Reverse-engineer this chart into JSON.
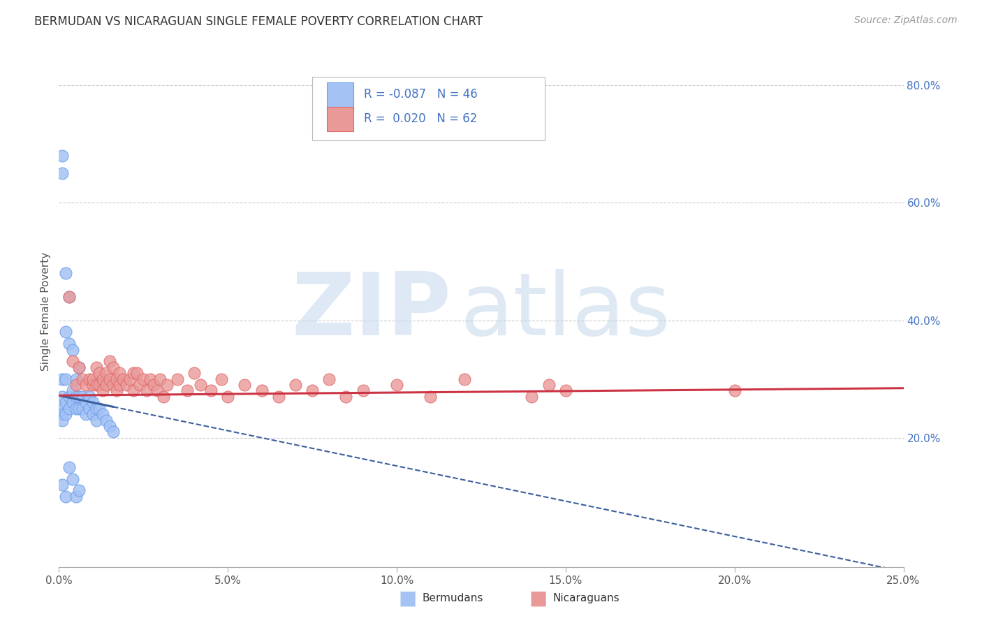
{
  "title": "BERMUDAN VS NICARAGUAN SINGLE FEMALE POVERTY CORRELATION CHART",
  "source": "Source: ZipAtlas.com",
  "ylabel": "Single Female Poverty",
  "xlim": [
    0.0,
    0.25
  ],
  "ylim": [
    -0.02,
    0.85
  ],
  "xtick_vals": [
    0.0,
    0.05,
    0.1,
    0.15,
    0.2,
    0.25
  ],
  "xtick_labels": [
    "0.0%",
    "5.0%",
    "10.0%",
    "15.0%",
    "20.0%",
    "25.0%"
  ],
  "ytick_vals": [
    0.2,
    0.4,
    0.6,
    0.8
  ],
  "ytick_labels": [
    "20.0%",
    "40.0%",
    "60.0%",
    "80.0%"
  ],
  "legend_R_blue": "-0.087",
  "legend_N_blue": "46",
  "legend_R_pink": "0.020",
  "legend_N_pink": "62",
  "blue_face": "#a4c2f4",
  "blue_edge": "#6d9eeb",
  "pink_face": "#ea9999",
  "pink_edge": "#e06666",
  "blue_line": "#3c5f9e",
  "pink_line": "#cc3344",
  "grid_color": "#cccccc",
  "watermark_zip_color": "#c5d8ee",
  "watermark_atlas_color": "#b8cfe8",
  "right_tick_color": "#4472c4",
  "background_color": "#ffffff",
  "blue_x": [
    0.001,
    0.001,
    0.001,
    0.001,
    0.001,
    0.001,
    0.001,
    0.002,
    0.002,
    0.002,
    0.002,
    0.002,
    0.003,
    0.003,
    0.003,
    0.003,
    0.004,
    0.004,
    0.004,
    0.005,
    0.005,
    0.005,
    0.006,
    0.006,
    0.006,
    0.007,
    0.007,
    0.008,
    0.008,
    0.009,
    0.009,
    0.01,
    0.01,
    0.011,
    0.011,
    0.012,
    0.013,
    0.014,
    0.015,
    0.016,
    0.001,
    0.002,
    0.003,
    0.004,
    0.005,
    0.006
  ],
  "blue_y": [
    0.68,
    0.65,
    0.3,
    0.27,
    0.25,
    0.24,
    0.23,
    0.48,
    0.38,
    0.3,
    0.26,
    0.24,
    0.44,
    0.36,
    0.27,
    0.25,
    0.35,
    0.28,
    0.26,
    0.3,
    0.27,
    0.25,
    0.32,
    0.27,
    0.25,
    0.27,
    0.25,
    0.26,
    0.24,
    0.27,
    0.25,
    0.26,
    0.24,
    0.25,
    0.23,
    0.25,
    0.24,
    0.23,
    0.22,
    0.21,
    0.12,
    0.1,
    0.15,
    0.13,
    0.1,
    0.11
  ],
  "pink_x": [
    0.003,
    0.004,
    0.005,
    0.006,
    0.007,
    0.008,
    0.009,
    0.01,
    0.01,
    0.011,
    0.011,
    0.012,
    0.012,
    0.013,
    0.013,
    0.014,
    0.014,
    0.015,
    0.015,
    0.016,
    0.016,
    0.017,
    0.017,
    0.018,
    0.018,
    0.019,
    0.02,
    0.021,
    0.022,
    0.022,
    0.023,
    0.024,
    0.025,
    0.026,
    0.027,
    0.028,
    0.029,
    0.03,
    0.031,
    0.032,
    0.035,
    0.038,
    0.04,
    0.042,
    0.045,
    0.048,
    0.05,
    0.055,
    0.06,
    0.065,
    0.07,
    0.075,
    0.08,
    0.085,
    0.09,
    0.1,
    0.11,
    0.12,
    0.14,
    0.145,
    0.15,
    0.2
  ],
  "pink_y": [
    0.44,
    0.33,
    0.29,
    0.32,
    0.3,
    0.29,
    0.3,
    0.29,
    0.3,
    0.32,
    0.29,
    0.31,
    0.29,
    0.3,
    0.28,
    0.31,
    0.29,
    0.33,
    0.3,
    0.32,
    0.29,
    0.3,
    0.28,
    0.31,
    0.29,
    0.3,
    0.29,
    0.3,
    0.31,
    0.28,
    0.31,
    0.29,
    0.3,
    0.28,
    0.3,
    0.29,
    0.28,
    0.3,
    0.27,
    0.29,
    0.3,
    0.28,
    0.31,
    0.29,
    0.28,
    0.3,
    0.27,
    0.29,
    0.28,
    0.27,
    0.29,
    0.28,
    0.3,
    0.27,
    0.28,
    0.29,
    0.27,
    0.3,
    0.27,
    0.29,
    0.28,
    0.28
  ]
}
